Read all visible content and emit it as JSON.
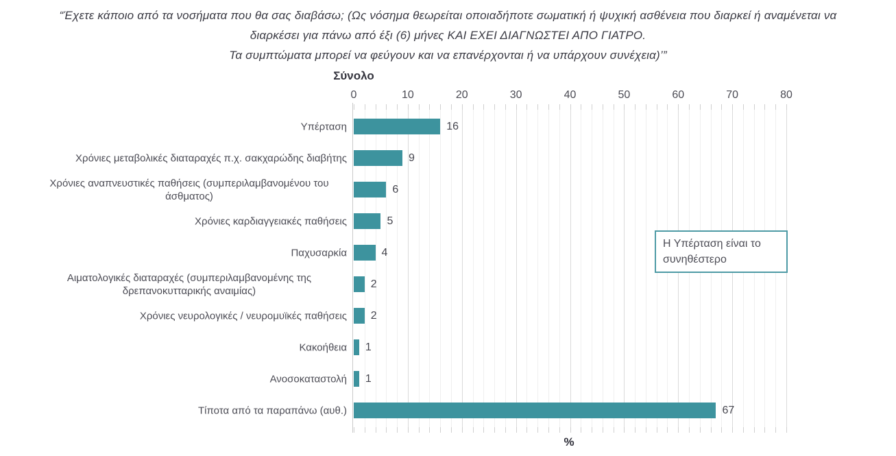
{
  "title": {
    "line1": "“Έχετε κάποιο από τα νοσήματα που θα σας διαβάσω; (Ως νόσημα θεωρείται οποιαδήποτε σωματική ή ψυχική ασθένεια που διαρκεί ή αναμένεται να",
    "line2": "διαρκέσει για πάνω από έξι (6) μήνες ΚΑΙ ΕΧΕΙ ΔΙΑΓΝΩΣΤΕΙ ΑΠΟ ΓΙΑΤΡΟ.",
    "line3": "Τα συμπτώματα μπορεί να φεύγουν και να επανέρχονται ή να υπάρχουν συνέχεια)’”"
  },
  "chart_data": {
    "type": "bar",
    "orientation": "horizontal",
    "group_header": "Σύνολο",
    "xlabel": "%",
    "xlim": [
      0,
      80
    ],
    "x_ticks": [
      0,
      10,
      20,
      30,
      40,
      50,
      60,
      70,
      80
    ],
    "minor_grid_step": 2,
    "major_grid_step": 10,
    "grid": true,
    "legend_position": "none",
    "categories": [
      "Υπέρταση",
      "Χρόνιες μεταβολικές διαταραχές π.χ. σακχαρώδης διαβήτης",
      "Χρόνιες αναπνευστικές παθήσεις (συμπεριλαμβανομένου του άσθματος)",
      "Χρόνιες καρδιαγγειακές παθήσεις",
      "Παχυσαρκία",
      "Αιματολογικές διαταραχές (συμπεριλαμβανομένης της δρεπανοκυτταρικής αναιμίας)",
      "Χρόνιες νευρολογικές / νευρομυϊκές παθήσεις",
      "Κακοήθεια",
      "Ανοσοκαταστολή",
      "Τίποτα από τα παραπάνω (αυθ.)"
    ],
    "values": [
      16,
      9,
      6,
      5,
      4,
      2,
      2,
      1,
      1,
      67
    ],
    "bar_color": "#3d939e",
    "value_label_color": "#45454e",
    "gridline_minor_color": "#efefef",
    "gridline_major_color": "#dadada"
  },
  "callout": {
    "text": "Η Υπέρταση είναι το συνηθέστερο",
    "border_color": "#4d9aa5"
  }
}
